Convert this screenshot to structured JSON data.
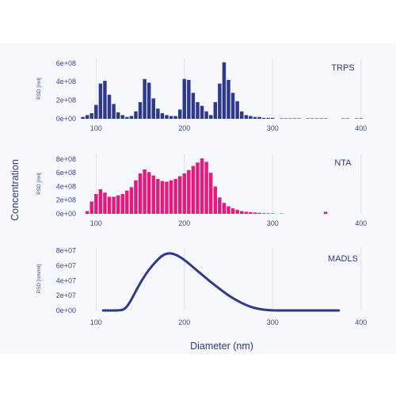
{
  "y_axis_label": "Concentration",
  "x_axis_label": "Diameter (nm)",
  "chart_data": [
    {
      "type": "bar",
      "panel_label": "TRPS",
      "ylabel": "PSD [/ml]",
      "color": "#2d3a8c",
      "xlim": [
        80,
        420
      ],
      "ylim": [
        0,
        650000000.0
      ],
      "yticks": [
        0,
        200000000.0,
        400000000.0,
        600000000.0
      ],
      "ytick_labels": [
        "0e+00",
        "2e+08",
        "4e+08",
        "6e+08"
      ],
      "xticks": [
        100,
        200,
        300,
        400
      ],
      "xtick_labels": [
        "100",
        "200",
        "300",
        "400"
      ],
      "x": [
        85,
        90,
        95,
        100,
        105,
        110,
        115,
        120,
        125,
        130,
        135,
        140,
        145,
        150,
        155,
        160,
        165,
        170,
        175,
        180,
        185,
        190,
        195,
        200,
        205,
        210,
        215,
        220,
        225,
        230,
        235,
        240,
        245,
        250,
        255,
        260,
        265,
        270,
        275,
        280,
        285,
        290,
        295,
        300,
        310,
        315,
        320,
        325,
        330,
        340,
        345,
        350,
        355,
        360,
        380,
        385,
        395,
        400
      ],
      "values": [
        20000000.0,
        40000000.0,
        60000000.0,
        150000000.0,
        380000000.0,
        410000000.0,
        260000000.0,
        160000000.0,
        70000000.0,
        40000000.0,
        20000000.0,
        30000000.0,
        80000000.0,
        180000000.0,
        430000000.0,
        390000000.0,
        220000000.0,
        110000000.0,
        60000000.0,
        40000000.0,
        30000000.0,
        30000000.0,
        100000000.0,
        430000000.0,
        420000000.0,
        280000000.0,
        180000000.0,
        140000000.0,
        80000000.0,
        40000000.0,
        180000000.0,
        380000000.0,
        610000000.0,
        420000000.0,
        280000000.0,
        190000000.0,
        80000000.0,
        40000000.0,
        30000000.0,
        20000000.0,
        20000000.0,
        10000000.0,
        10000000.0,
        10000000.0,
        5000000.0,
        5000000.0,
        5000000.0,
        5000000.0,
        5000000.0,
        5000000.0,
        5000000.0,
        5000000.0,
        5000000.0,
        5000000.0,
        5000000.0,
        5000000.0,
        5000000.0,
        5000000.0
      ]
    },
    {
      "type": "bar",
      "panel_label": "NTA",
      "ylabel": "PSD [/ml]",
      "color": "#e6197d",
      "xlim": [
        80,
        420
      ],
      "ylim": [
        0,
        880000000.0
      ],
      "yticks": [
        0,
        200000000.0,
        400000000.0,
        600000000.0,
        800000000.0
      ],
      "ytick_labels": [
        "0e+00",
        "2e+08",
        "4e+08",
        "6e+08",
        "8e+08"
      ],
      "xticks": [
        100,
        200,
        300,
        400
      ],
      "xtick_labels": [
        "100",
        "200",
        "300",
        "400"
      ],
      "x": [
        90,
        95,
        100,
        105,
        110,
        115,
        120,
        125,
        130,
        135,
        140,
        145,
        150,
        155,
        160,
        165,
        170,
        175,
        180,
        185,
        190,
        195,
        200,
        205,
        210,
        215,
        220,
        225,
        230,
        235,
        240,
        245,
        250,
        255,
        260,
        265,
        270,
        275,
        280,
        285,
        290,
        295,
        300,
        310,
        360
      ],
      "values": [
        40000000.0,
        180000000.0,
        290000000.0,
        360000000.0,
        310000000.0,
        250000000.0,
        250000000.0,
        270000000.0,
        290000000.0,
        340000000.0,
        390000000.0,
        490000000.0,
        590000000.0,
        650000000.0,
        610000000.0,
        560000000.0,
        510000000.0,
        480000000.0,
        470000000.0,
        490000000.0,
        510000000.0,
        550000000.0,
        590000000.0,
        640000000.0,
        700000000.0,
        750000000.0,
        810000000.0,
        760000000.0,
        600000000.0,
        400000000.0,
        240000000.0,
        160000000.0,
        110000000.0,
        80000000.0,
        60000000.0,
        40000000.0,
        30000000.0,
        25000000.0,
        20000000.0,
        15000000.0,
        10000000.0,
        8000000.0,
        6000000.0,
        5000000.0,
        30000000.0
      ]
    },
    {
      "type": "line",
      "panel_label": "MADLS",
      "ylabel": "PSD [nm/ml]",
      "color": "#2d3a8c",
      "xlim": [
        80,
        420
      ],
      "ylim": [
        0,
        85000000.0
      ],
      "yticks": [
        0,
        20000000.0,
        40000000.0,
        60000000.0,
        80000000.0
      ],
      "ytick_labels": [
        "0e+00",
        "2e+07",
        "4e+07",
        "6e+07",
        "8e+07"
      ],
      "xticks": [
        100,
        200,
        300,
        400
      ],
      "xtick_labels": [
        "100",
        "200",
        "300",
        "400"
      ],
      "x": [
        108,
        115,
        125,
        132,
        138,
        145,
        152,
        160,
        168,
        175,
        182,
        188,
        195,
        202,
        210,
        220,
        230,
        240,
        250,
        260,
        270,
        280,
        290,
        300,
        310,
        320,
        335,
        350,
        365,
        375
      ],
      "values": [
        0,
        0,
        0,
        1000000.0,
        10000000.0,
        26000000.0,
        41000000.0,
        55000000.0,
        66000000.0,
        74000000.0,
        77000000.0,
        76000000.0,
        72000000.0,
        66000000.0,
        58000000.0,
        48000000.0,
        38000000.0,
        29000000.0,
        20000000.0,
        13000000.0,
        7000000.0,
        3000000.0,
        1000000.0,
        0,
        0,
        0,
        0,
        0,
        0,
        0
      ]
    }
  ]
}
